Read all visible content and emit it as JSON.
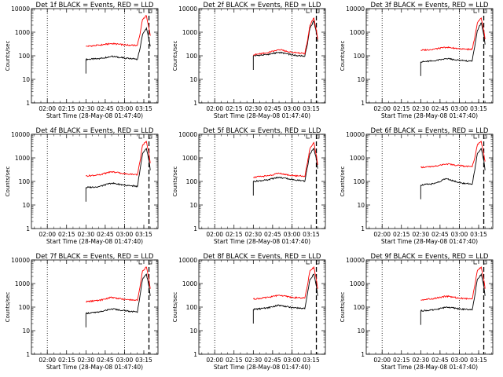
{
  "figure": {
    "background": "#ffffff"
  },
  "chart_data": [
    {
      "type": "line",
      "title": "Det 1f BLACK = Events, RED = LLD",
      "xlabel": "Start Time (28-May-08 01:47:40)",
      "ylabel": "Counts/sec",
      "x_tick_labels": [
        "02:00",
        "02:15",
        "02:30",
        "02:45",
        "03:00",
        "03:15"
      ],
      "y_tick_labels": [
        "1",
        "10",
        "100",
        "1000",
        "10000"
      ],
      "xlim": [
        "01:47:40",
        "03:26:00"
      ],
      "ylim": [
        1,
        10000
      ],
      "yscale": "log",
      "grid": false,
      "series": [
        {
          "name": "Events",
          "color": "#000000",
          "x": [
            "02:30",
            "02:40",
            "02:50",
            "03:00",
            "03:05",
            "03:08",
            "03:10",
            "03:12",
            "03:14",
            "03:17",
            "03:19",
            "03:20"
          ],
          "y": [
            70,
            75,
            95,
            80,
            75,
            75,
            70,
            200,
            800,
            1500,
            500,
            250
          ]
        },
        {
          "name": "LLD",
          "color": "#ff0000",
          "x": [
            "02:30",
            "02:40",
            "02:50",
            "03:00",
            "03:05",
            "03:08",
            "03:10",
            "03:12",
            "03:14",
            "03:17",
            "03:19",
            "03:20"
          ],
          "y": [
            250,
            280,
            330,
            290,
            280,
            280,
            280,
            800,
            3500,
            5000,
            1500,
            700
          ]
        }
      ],
      "vlines": {
        "dotted": [
          "02:00",
          "03:00"
        ],
        "dashed": [
          "03:19"
        ]
      }
    },
    {
      "type": "line",
      "title": "Det 2f BLACK = Events, RED = LLD",
      "xlabel": "Start Time (28-May-08 01:47:40)",
      "ylabel": "Counts/sec",
      "x_tick_labels": [
        "02:00",
        "02:15",
        "02:30",
        "02:45",
        "03:00",
        "03:15"
      ],
      "y_tick_labels": [
        "1",
        "10",
        "100",
        "1000",
        "10000"
      ],
      "xlim": [
        "01:47:40",
        "03:26:00"
      ],
      "ylim": [
        1,
        10000
      ],
      "yscale": "log",
      "grid": false,
      "series": [
        {
          "name": "Events",
          "color": "#000000",
          "x": [
            "02:30",
            "02:40",
            "02:50",
            "03:00",
            "03:05",
            "03:08",
            "03:10",
            "03:12",
            "03:14",
            "03:17",
            "03:19",
            "03:20"
          ],
          "y": [
            100,
            110,
            140,
            110,
            100,
            100,
            95,
            300,
            1500,
            3000,
            1000,
            400
          ]
        },
        {
          "name": "LLD",
          "color": "#ff0000",
          "x": [
            "02:30",
            "02:40",
            "02:50",
            "03:00",
            "03:05",
            "03:08",
            "03:10",
            "03:12",
            "03:14",
            "03:17",
            "03:19",
            "03:20"
          ],
          "y": [
            110,
            130,
            180,
            140,
            130,
            130,
            120,
            400,
            2000,
            4000,
            1200,
            500
          ]
        }
      ],
      "vlines": {
        "dotted": [
          "02:00",
          "03:00"
        ],
        "dashed": [
          "03:19"
        ]
      }
    },
    {
      "type": "line",
      "title": "Det 3f BLACK = Events, RED = LLD",
      "xlabel": "Start Time (28-May-08 01:47:40)",
      "ylabel": "Counts/sec",
      "x_tick_labels": [
        "02:00",
        "02:15",
        "02:30",
        "02:45",
        "03:00",
        "03:15"
      ],
      "y_tick_labels": [
        "1",
        "10",
        "100",
        "1000",
        "10000"
      ],
      "xlim": [
        "01:47:40",
        "03:26:00"
      ],
      "ylim": [
        1,
        10000
      ],
      "yscale": "log",
      "grid": false,
      "series": [
        {
          "name": "Events",
          "color": "#000000",
          "x": [
            "02:30",
            "02:40",
            "02:50",
            "03:00",
            "03:05",
            "03:08",
            "03:10",
            "03:12",
            "03:14",
            "03:17",
            "03:19",
            "03:20"
          ],
          "y": [
            55,
            60,
            75,
            65,
            60,
            60,
            60,
            250,
            1200,
            2500,
            800,
            300
          ]
        },
        {
          "name": "LLD",
          "color": "#ff0000",
          "x": [
            "02:30",
            "02:40",
            "02:50",
            "03:00",
            "03:05",
            "03:08",
            "03:10",
            "03:12",
            "03:14",
            "03:17",
            "03:19",
            "03:20"
          ],
          "y": [
            170,
            190,
            230,
            200,
            190,
            190,
            190,
            600,
            2500,
            4000,
            1200,
            500
          ]
        }
      ],
      "vlines": {
        "dotted": [
          "02:00",
          "03:00"
        ],
        "dashed": [
          "03:19"
        ]
      }
    },
    {
      "type": "line",
      "title": "Det 4f BLACK = Events, RED = LLD",
      "xlabel": "Start Time (28-May-08 01:47:40)",
      "ylabel": "Counts/sec",
      "x_tick_labels": [
        "02:00",
        "02:15",
        "02:30",
        "02:45",
        "03:00",
        "03:15"
      ],
      "y_tick_labels": [
        "1",
        "10",
        "100",
        "1000",
        "10000"
      ],
      "xlim": [
        "01:47:40",
        "03:26:00"
      ],
      "ylim": [
        1,
        10000
      ],
      "yscale": "log",
      "grid": false,
      "series": [
        {
          "name": "Events",
          "color": "#000000",
          "x": [
            "02:30",
            "02:40",
            "02:50",
            "03:00",
            "03:05",
            "03:08",
            "03:10",
            "03:12",
            "03:14",
            "03:17",
            "03:19",
            "03:20"
          ],
          "y": [
            55,
            60,
            85,
            70,
            65,
            65,
            60,
            300,
            1500,
            2500,
            800,
            300
          ]
        },
        {
          "name": "LLD",
          "color": "#ff0000",
          "x": [
            "02:30",
            "02:40",
            "02:50",
            "03:00",
            "03:05",
            "03:08",
            "03:10",
            "03:12",
            "03:14",
            "03:17",
            "03:19",
            "03:20"
          ],
          "y": [
            170,
            190,
            260,
            210,
            200,
            200,
            190,
            700,
            3500,
            5000,
            1500,
            600
          ]
        }
      ],
      "vlines": {
        "dotted": [
          "02:00",
          "03:00"
        ],
        "dashed": [
          "03:19"
        ]
      }
    },
    {
      "type": "line",
      "title": "Det 5f BLACK = Events, RED = LLD",
      "xlabel": "Start Time (28-May-08 01:47:40)",
      "ylabel": "Counts/sec",
      "x_tick_labels": [
        "02:00",
        "02:15",
        "02:30",
        "02:45",
        "03:00",
        "03:15"
      ],
      "y_tick_labels": [
        "1",
        "10",
        "100",
        "1000",
        "10000"
      ],
      "xlim": [
        "01:47:40",
        "03:26:00"
      ],
      "ylim": [
        1,
        10000
      ],
      "yscale": "log",
      "grid": false,
      "series": [
        {
          "name": "Events",
          "color": "#000000",
          "x": [
            "02:30",
            "02:40",
            "02:50",
            "03:00",
            "03:05",
            "03:08",
            "03:10",
            "03:12",
            "03:14",
            "03:17",
            "03:19",
            "03:20"
          ],
          "y": [
            100,
            115,
            150,
            120,
            110,
            110,
            100,
            400,
            1500,
            2500,
            900,
            350
          ]
        },
        {
          "name": "LLD",
          "color": "#ff0000",
          "x": [
            "02:30",
            "02:40",
            "02:50",
            "03:00",
            "03:05",
            "03:08",
            "03:10",
            "03:12",
            "03:14",
            "03:17",
            "03:19",
            "03:20"
          ],
          "y": [
            150,
            170,
            220,
            180,
            170,
            170,
            160,
            600,
            2500,
            4500,
            1300,
            500
          ]
        }
      ],
      "vlines": {
        "dotted": [
          "02:00",
          "03:00"
        ],
        "dashed": [
          "03:19"
        ]
      }
    },
    {
      "type": "line",
      "title": "Det 6f BLACK = Events, RED = LLD",
      "xlabel": "Start Time (28-May-08 01:47:40)",
      "ylabel": "Counts/sec",
      "x_tick_labels": [
        "02:00",
        "02:15",
        "02:30",
        "02:45",
        "03:00",
        "03:15"
      ],
      "y_tick_labels": [
        "1",
        "10",
        "100",
        "1000",
        "10000"
      ],
      "xlim": [
        "01:47:40",
        "03:26:00"
      ],
      "ylim": [
        1,
        10000
      ],
      "yscale": "log",
      "grid": false,
      "series": [
        {
          "name": "Events",
          "color": "#000000",
          "x": [
            "02:30",
            "02:40",
            "02:50",
            "03:00",
            "03:05",
            "03:08",
            "03:10",
            "03:12",
            "03:14",
            "03:17",
            "03:19",
            "03:20"
          ],
          "y": [
            70,
            80,
            130,
            90,
            80,
            80,
            75,
            300,
            1500,
            2500,
            800,
            300
          ]
        },
        {
          "name": "LLD",
          "color": "#ff0000",
          "x": [
            "02:30",
            "02:40",
            "02:50",
            "03:00",
            "03:05",
            "03:08",
            "03:10",
            "03:12",
            "03:14",
            "03:17",
            "03:19",
            "03:20"
          ],
          "y": [
            400,
            420,
            560,
            470,
            440,
            440,
            420,
            1000,
            3500,
            5000,
            1500,
            700
          ]
        }
      ],
      "vlines": {
        "dotted": [
          "02:00",
          "03:00"
        ],
        "dashed": [
          "03:19"
        ]
      }
    },
    {
      "type": "line",
      "title": "Det 7f BLACK = Events, RED = LLD",
      "xlabel": "Start Time (28-May-08 01:47:40)",
      "ylabel": "Counts/sec",
      "x_tick_labels": [
        "02:00",
        "02:15",
        "02:30",
        "02:45",
        "03:00",
        "03:15"
      ],
      "y_tick_labels": [
        "1",
        "10",
        "100",
        "1000",
        "10000"
      ],
      "xlim": [
        "01:47:40",
        "03:26:00"
      ],
      "ylim": [
        1,
        10000
      ],
      "yscale": "log",
      "grid": false,
      "series": [
        {
          "name": "Events",
          "color": "#000000",
          "x": [
            "02:30",
            "02:40",
            "02:50",
            "03:00",
            "03:05",
            "03:08",
            "03:10",
            "03:12",
            "03:14",
            "03:17",
            "03:19",
            "03:20"
          ],
          "y": [
            55,
            60,
            85,
            70,
            65,
            65,
            60,
            300,
            1500,
            2500,
            800,
            300
          ]
        },
        {
          "name": "LLD",
          "color": "#ff0000",
          "x": [
            "02:30",
            "02:40",
            "02:50",
            "03:00",
            "03:05",
            "03:08",
            "03:10",
            "03:12",
            "03:14",
            "03:17",
            "03:19",
            "03:20"
          ],
          "y": [
            170,
            190,
            260,
            210,
            200,
            200,
            190,
            700,
            3500,
            5000,
            1500,
            600
          ]
        }
      ],
      "vlines": {
        "dotted": [
          "02:00",
          "03:00"
        ],
        "dashed": [
          "03:19"
        ]
      }
    },
    {
      "type": "line",
      "title": "Det 8f BLACK = Events, RED = LLD",
      "xlabel": "Start Time (28-May-08 01:47:40)",
      "ylabel": "Counts/sec",
      "x_tick_labels": [
        "02:00",
        "02:15",
        "02:30",
        "02:45",
        "03:00",
        "03:15"
      ],
      "y_tick_labels": [
        "1",
        "10",
        "100",
        "1000",
        "10000"
      ],
      "xlim": [
        "01:47:40",
        "03:26:00"
      ],
      "ylim": [
        1,
        10000
      ],
      "yscale": "log",
      "grid": false,
      "series": [
        {
          "name": "Events",
          "color": "#000000",
          "x": [
            "02:30",
            "02:40",
            "02:50",
            "03:00",
            "03:05",
            "03:08",
            "03:10",
            "03:12",
            "03:14",
            "03:17",
            "03:19",
            "03:20"
          ],
          "y": [
            80,
            90,
            120,
            95,
            90,
            90,
            85,
            350,
            1500,
            2500,
            800,
            300
          ]
        },
        {
          "name": "LLD",
          "color": "#ff0000",
          "x": [
            "02:30",
            "02:40",
            "02:50",
            "03:00",
            "03:05",
            "03:08",
            "03:10",
            "03:12",
            "03:14",
            "03:17",
            "03:19",
            "03:20"
          ],
          "y": [
            220,
            250,
            320,
            260,
            250,
            250,
            240,
            800,
            3500,
            5000,
            1500,
            600
          ]
        }
      ],
      "vlines": {
        "dotted": [
          "02:00",
          "03:00"
        ],
        "dashed": [
          "03:19"
        ]
      }
    },
    {
      "type": "line",
      "title": "Det 9f BLACK = Events, RED = LLD",
      "xlabel": "Start Time (28-May-08 01:47:40)",
      "ylabel": "Counts/sec",
      "x_tick_labels": [
        "02:00",
        "02:15",
        "02:30",
        "02:45",
        "03:00",
        "03:15"
      ],
      "y_tick_labels": [
        "1",
        "10",
        "100",
        "1000",
        "10000"
      ],
      "xlim": [
        "01:47:40",
        "03:26:00"
      ],
      "ylim": [
        1,
        10000
      ],
      "yscale": "log",
      "grid": false,
      "series": [
        {
          "name": "Events",
          "color": "#000000",
          "x": [
            "02:30",
            "02:40",
            "02:50",
            "03:00",
            "03:05",
            "03:08",
            "03:10",
            "03:12",
            "03:14",
            "03:17",
            "03:19",
            "03:20"
          ],
          "y": [
            70,
            75,
            100,
            85,
            80,
            80,
            75,
            300,
            1500,
            2500,
            800,
            300
          ]
        },
        {
          "name": "LLD",
          "color": "#ff0000",
          "x": [
            "02:30",
            "02:40",
            "02:50",
            "03:00",
            "03:05",
            "03:08",
            "03:10",
            "03:12",
            "03:14",
            "03:17",
            "03:19",
            "03:20"
          ],
          "y": [
            200,
            230,
            290,
            240,
            230,
            230,
            220,
            800,
            3500,
            5000,
            1500,
            600
          ]
        }
      ],
      "vlines": {
        "dotted": [
          "02:00",
          "03:00"
        ],
        "dashed": [
          "03:19"
        ]
      }
    }
  ]
}
